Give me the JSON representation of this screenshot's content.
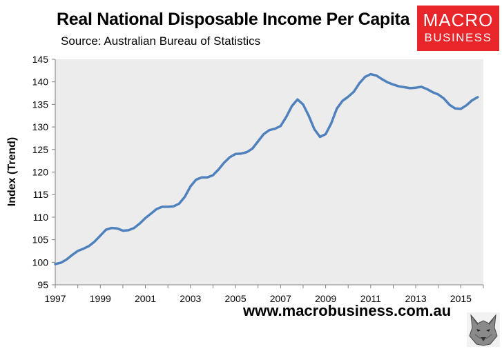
{
  "header": {
    "title": "Real National Disposable Income Per Capita",
    "subtitle": "Source: Australian Bureau of Statistics"
  },
  "logo": {
    "line1": "MACRO",
    "line2": "BUSINESS"
  },
  "footer": {
    "website": "www.macrobusiness.com.au"
  },
  "colors": {
    "line": "#4f81bd",
    "plot_bg": "#ececec",
    "logo_bg": "#e8262a"
  },
  "chart_data": {
    "type": "line",
    "title": "Real National Disposable Income Per Capita",
    "xlabel": "",
    "ylabel": "Index (Trend)",
    "xlim": [
      1997,
      2016.0
    ],
    "ylim": [
      95,
      145
    ],
    "yticks": [
      95,
      100,
      105,
      110,
      115,
      120,
      125,
      130,
      135,
      140,
      145
    ],
    "xticks": [
      1997,
      1999,
      2001,
      2003,
      2005,
      2007,
      2009,
      2011,
      2013,
      2015
    ],
    "grid": false,
    "series": [
      {
        "name": "Real National Disposable Income Per Capita",
        "x": [
          1997.0,
          1997.25,
          1997.5,
          1997.75,
          1998.0,
          1998.25,
          1998.5,
          1998.75,
          1999.0,
          1999.25,
          1999.5,
          1999.75,
          2000.0,
          2000.25,
          2000.5,
          2000.75,
          2001.0,
          2001.25,
          2001.5,
          2001.75,
          2002.0,
          2002.25,
          2002.5,
          2002.75,
          2003.0,
          2003.25,
          2003.5,
          2003.75,
          2004.0,
          2004.25,
          2004.5,
          2004.75,
          2005.0,
          2005.25,
          2005.5,
          2005.75,
          2006.0,
          2006.25,
          2006.5,
          2006.75,
          2007.0,
          2007.25,
          2007.5,
          2007.75,
          2008.0,
          2008.25,
          2008.5,
          2008.75,
          2009.0,
          2009.25,
          2009.5,
          2009.75,
          2010.0,
          2010.25,
          2010.5,
          2010.75,
          2011.0,
          2011.25,
          2011.5,
          2011.75,
          2012.0,
          2012.25,
          2012.5,
          2012.75,
          2013.0,
          2013.25,
          2013.5,
          2013.75,
          2014.0,
          2014.25,
          2014.5,
          2014.75,
          2015.0,
          2015.25,
          2015.5,
          2015.75
        ],
        "values": [
          99.6,
          99.9,
          100.6,
          101.6,
          102.5,
          103.0,
          103.6,
          104.6,
          105.9,
          107.2,
          107.6,
          107.5,
          107.0,
          107.1,
          107.6,
          108.6,
          109.8,
          110.8,
          111.8,
          112.3,
          112.3,
          112.4,
          113.0,
          114.5,
          116.8,
          118.3,
          118.8,
          118.8,
          119.3,
          120.6,
          122.1,
          123.3,
          124.0,
          124.1,
          124.4,
          125.2,
          126.8,
          128.4,
          129.3,
          129.6,
          130.2,
          132.2,
          134.6,
          136.1,
          135.0,
          132.5,
          129.5,
          127.8,
          128.4,
          130.8,
          134.1,
          135.8,
          136.7,
          137.8,
          139.7,
          141.1,
          141.7,
          141.4,
          140.6,
          139.9,
          139.4,
          139.0,
          138.8,
          138.6,
          138.7,
          138.9,
          138.4,
          137.7,
          137.2,
          136.3,
          134.9,
          134.1,
          134.0,
          134.8,
          135.9,
          136.6
        ]
      }
    ]
  }
}
